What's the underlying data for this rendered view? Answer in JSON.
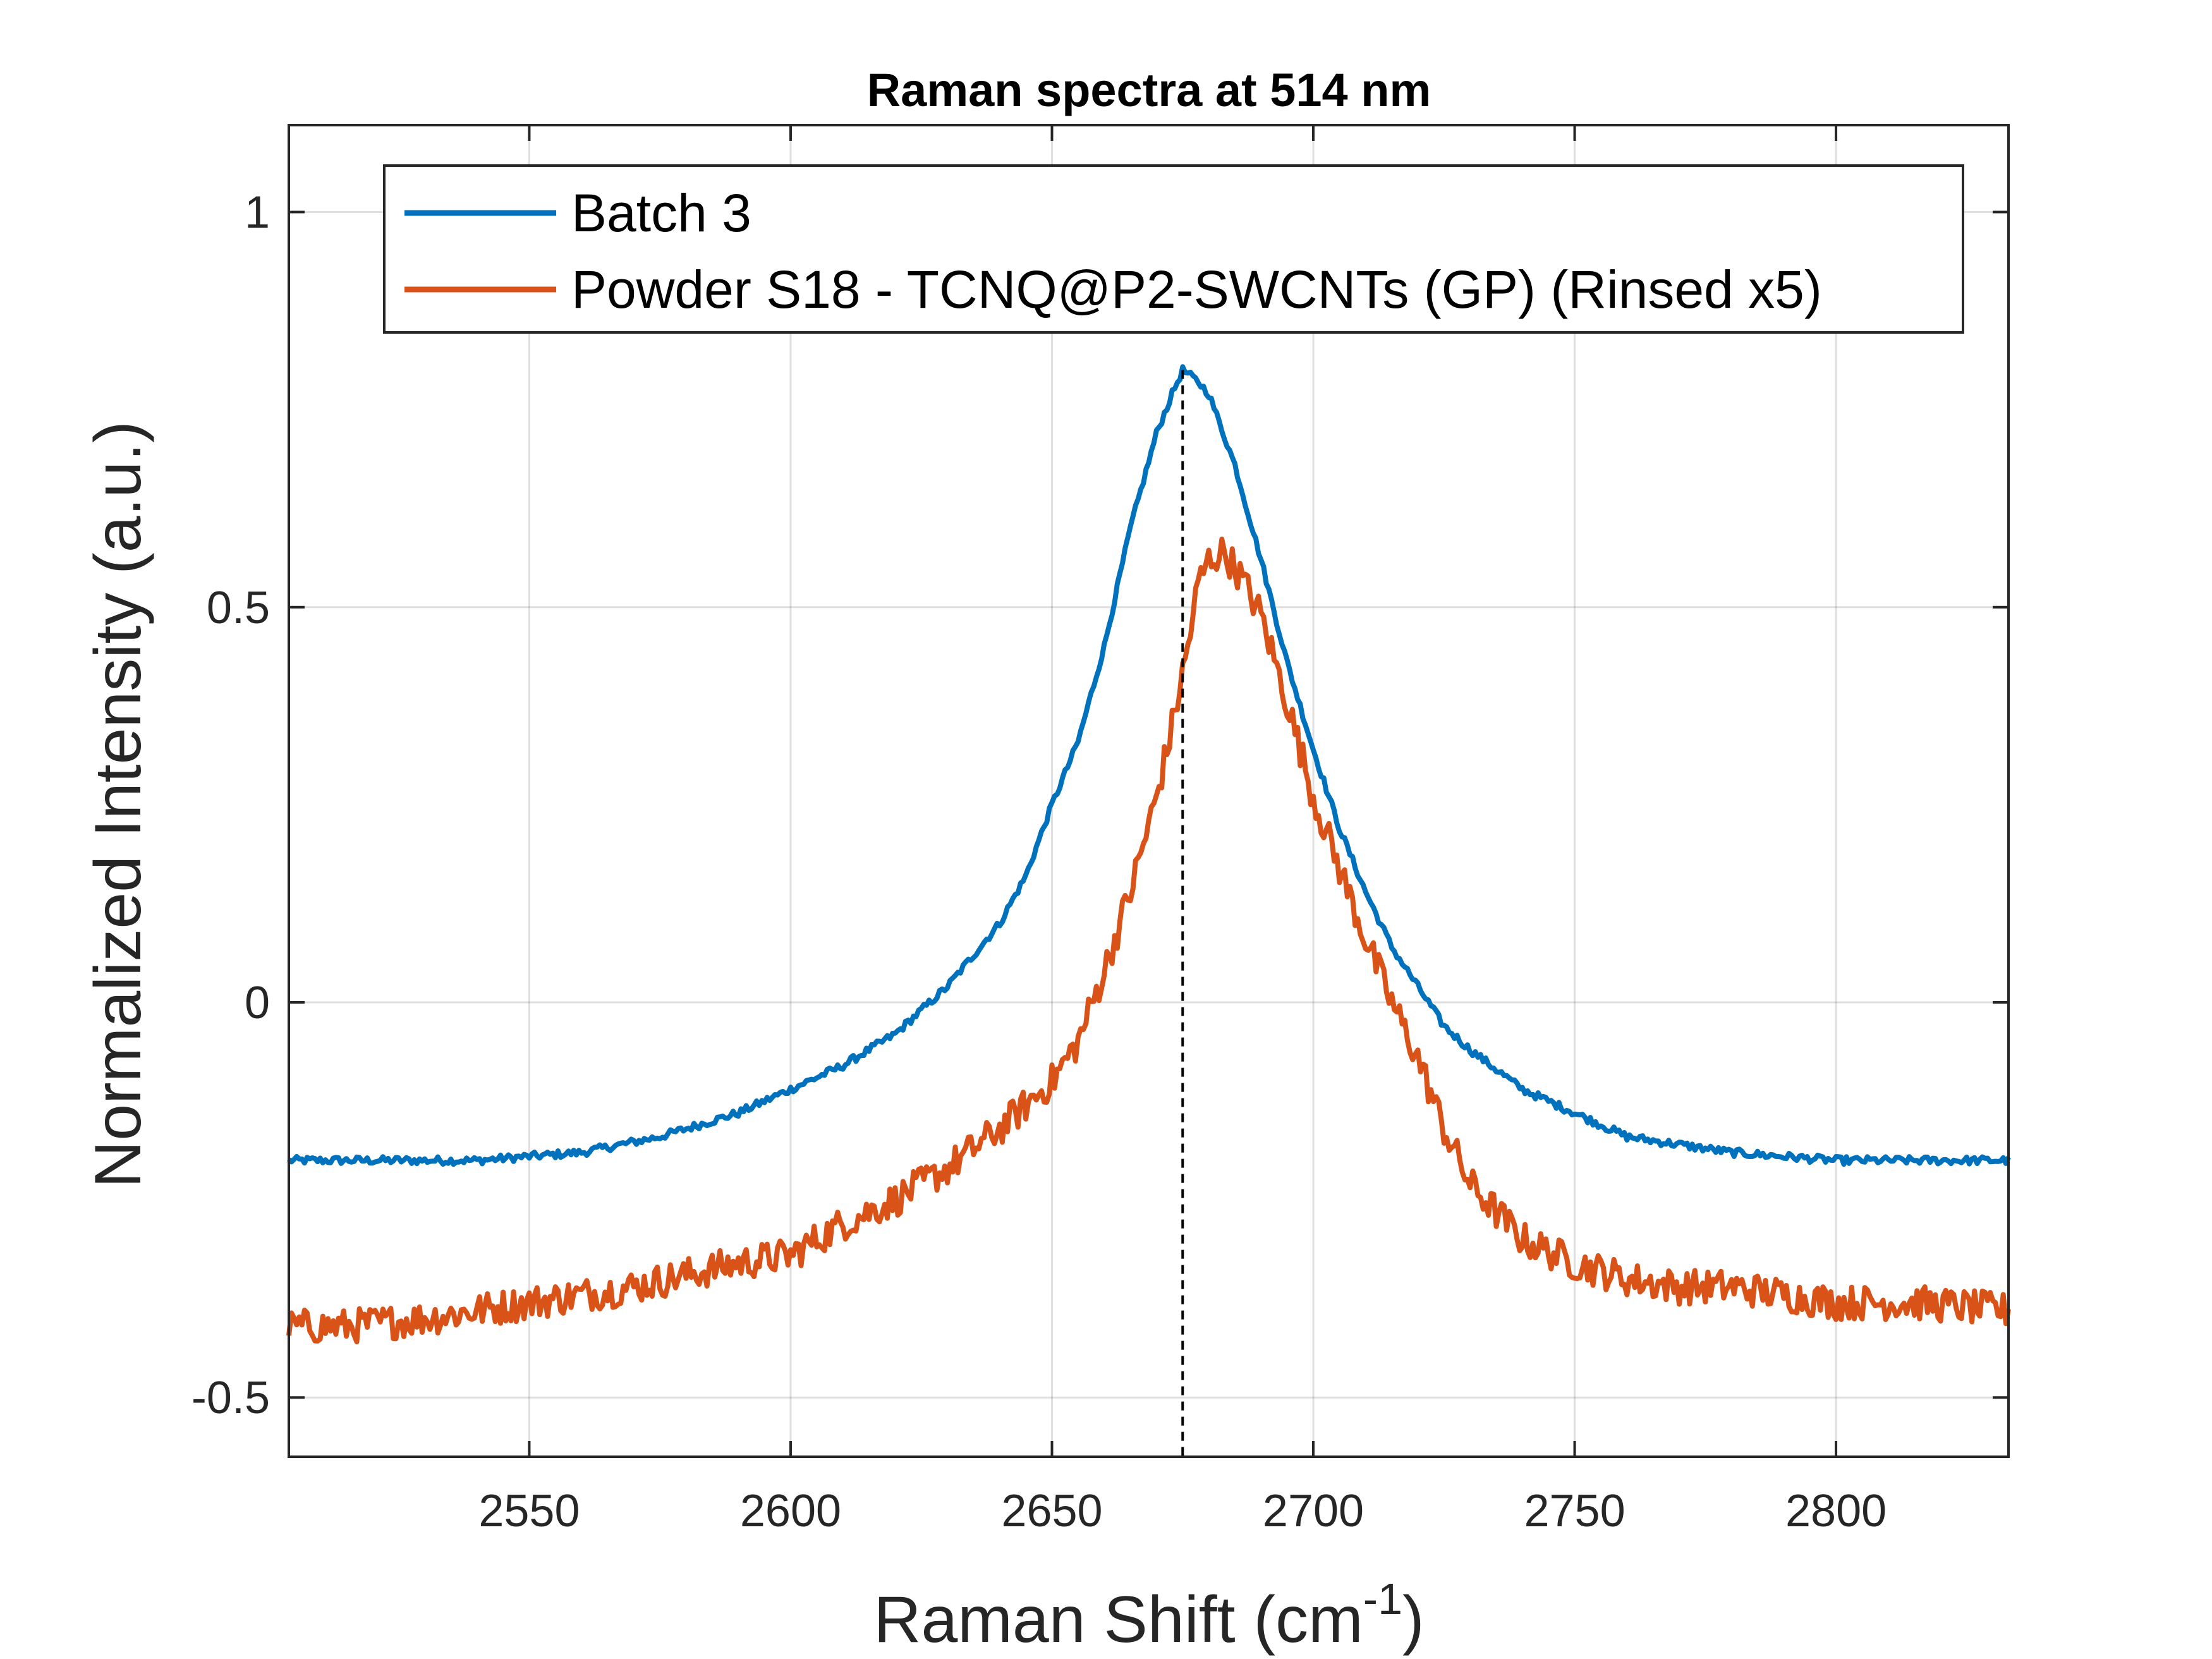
{
  "chart_data": {
    "type": "line",
    "title": "Raman spectra at 514 nm",
    "xlabel": "Raman Shift (cm",
    "xlabel_superscript": "-1",
    "xlabel_suffix": ")",
    "ylabel": "Normalized Intensity (a.u.)",
    "xlim": [
      2504,
      2833
    ],
    "ylim": [
      -0.575,
      1.11
    ],
    "x_ticks": [
      2550,
      2600,
      2650,
      2700,
      2750,
      2800
    ],
    "x_tick_labels": [
      "2550",
      "2600",
      "2650",
      "2700",
      "2750",
      "2800"
    ],
    "y_ticks": [
      -0.5,
      0,
      0.5,
      1
    ],
    "y_tick_labels": [
      "-0.5",
      "0",
      "0.5",
      "1"
    ],
    "grid": true,
    "legend_position": "top",
    "peak_marker_x": 2675,
    "series": [
      {
        "name": "Batch 3",
        "color": "#0072BD",
        "noise": 0.005,
        "x": [
          2504,
          2520,
          2540,
          2560,
          2575,
          2590,
          2600,
          2610,
          2620,
          2630,
          2640,
          2645,
          2650,
          2655,
          2660,
          2665,
          2670,
          2673,
          2675,
          2678,
          2680,
          2685,
          2690,
          2695,
          2700,
          2705,
          2710,
          2715,
          2720,
          2725,
          2730,
          2740,
          2750,
          2760,
          2770,
          2780,
          2800,
          2815,
          2833
        ],
        "y": [
          -0.2,
          -0.2,
          -0.2,
          -0.19,
          -0.17,
          -0.14,
          -0.11,
          -0.08,
          -0.04,
          0.02,
          0.1,
          0.16,
          0.25,
          0.33,
          0.45,
          0.6,
          0.72,
          0.77,
          0.8,
          0.785,
          0.77,
          0.68,
          0.56,
          0.43,
          0.32,
          0.22,
          0.14,
          0.07,
          0.02,
          -0.03,
          -0.06,
          -0.11,
          -0.14,
          -0.17,
          -0.18,
          -0.19,
          -0.2,
          -0.2,
          -0.2
        ]
      },
      {
        "name": "Powder S18 - TCNQ@P2-SWCNTs (GP) (Rinsed x5)",
        "color": "#D95319",
        "noise": 0.022,
        "x": [
          2504,
          2515,
          2530,
          2550,
          2570,
          2590,
          2600,
          2610,
          2620,
          2630,
          2640,
          2650,
          2655,
          2660,
          2665,
          2670,
          2673,
          2676,
          2678,
          2680,
          2683,
          2686,
          2690,
          2695,
          2700,
          2705,
          2710,
          2715,
          2720,
          2725,
          2730,
          2740,
          2750,
          2760,
          2770,
          2780,
          2790,
          2800,
          2815,
          2833
        ],
        "y": [
          -0.41,
          -0.41,
          -0.4,
          -0.38,
          -0.36,
          -0.33,
          -0.32,
          -0.28,
          -0.25,
          -0.21,
          -0.16,
          -0.1,
          -0.05,
          0.04,
          0.14,
          0.26,
          0.35,
          0.45,
          0.53,
          0.56,
          0.57,
          0.54,
          0.49,
          0.38,
          0.26,
          0.17,
          0.08,
          0.0,
          -0.07,
          -0.16,
          -0.23,
          -0.3,
          -0.33,
          -0.35,
          -0.36,
          -0.36,
          -0.37,
          -0.38,
          -0.38,
          -0.39
        ]
      }
    ]
  }
}
